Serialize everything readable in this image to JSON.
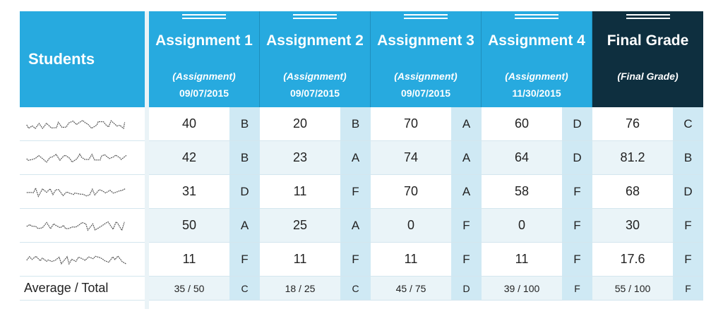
{
  "header": {
    "students_label": "Students",
    "columns": [
      {
        "title": "Assignment 1",
        "sub": "(Assignment)",
        "date": "09/07/2015"
      },
      {
        "title": "Assignment 2",
        "sub": "(Assignment)",
        "date": "09/07/2015"
      },
      {
        "title": "Assignment 3",
        "sub": "(Assignment)",
        "date": "09/07/2015"
      },
      {
        "title": "Assignment 4",
        "sub": "(Assignment)",
        "date": "11/30/2015"
      },
      {
        "title": "Final Grade",
        "sub": "(Final Grade)",
        "date": ""
      }
    ]
  },
  "rows": [
    {
      "cells": [
        {
          "score": "40",
          "grade": "B"
        },
        {
          "score": "20",
          "grade": "B"
        },
        {
          "score": "70",
          "grade": "A"
        },
        {
          "score": "60",
          "grade": "D"
        },
        {
          "score": "76",
          "grade": "C"
        }
      ]
    },
    {
      "cells": [
        {
          "score": "42",
          "grade": "B"
        },
        {
          "score": "23",
          "grade": "A"
        },
        {
          "score": "74",
          "grade": "A"
        },
        {
          "score": "64",
          "grade": "D"
        },
        {
          "score": "81.2",
          "grade": "B"
        }
      ]
    },
    {
      "cells": [
        {
          "score": "31",
          "grade": "D"
        },
        {
          "score": "11",
          "grade": "F"
        },
        {
          "score": "70",
          "grade": "A"
        },
        {
          "score": "58",
          "grade": "F"
        },
        {
          "score": "68",
          "grade": "D"
        }
      ]
    },
    {
      "cells": [
        {
          "score": "50",
          "grade": "A"
        },
        {
          "score": "25",
          "grade": "A"
        },
        {
          "score": "0",
          "grade": "F"
        },
        {
          "score": "0",
          "grade": "F"
        },
        {
          "score": "30",
          "grade": "F"
        }
      ]
    },
    {
      "cells": [
        {
          "score": "11",
          "grade": "F"
        },
        {
          "score": "11",
          "grade": "F"
        },
        {
          "score": "11",
          "grade": "F"
        },
        {
          "score": "11",
          "grade": "F"
        },
        {
          "score": "17.6",
          "grade": "F"
        }
      ]
    }
  ],
  "total": {
    "label": "Average / Total",
    "cells": [
      {
        "score": "35 / 50",
        "grade": "C"
      },
      {
        "score": "18 / 25",
        "grade": "C"
      },
      {
        "score": "45 / 75",
        "grade": "D"
      },
      {
        "score": "39 / 100",
        "grade": "F"
      },
      {
        "score": "55 / 100",
        "grade": "F"
      }
    ]
  },
  "colors": {
    "header_blue": "#27aadf",
    "header_dark": "#0e2f3f",
    "grade_cell": "#cfe9f4"
  }
}
